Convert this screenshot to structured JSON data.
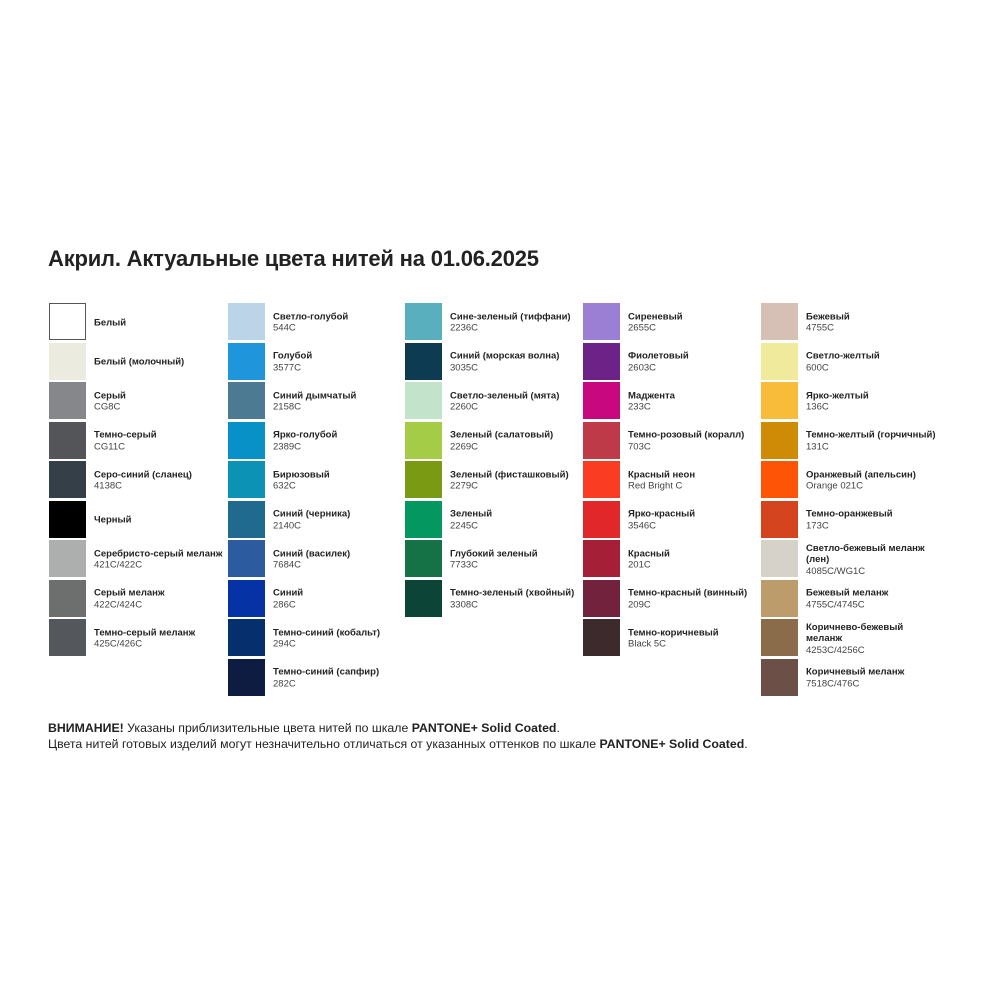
{
  "title": "Акрил. Актуальные цвета нитей на 01.06.2025",
  "columns": [
    [
      {
        "name": "Белый",
        "code": "",
        "color": "#ffffff",
        "border": true
      },
      {
        "name": "Белый (молочный)",
        "code": "",
        "color": "#ecebe0"
      },
      {
        "name": "Серый",
        "code": "CG8C",
        "color": "#85878b"
      },
      {
        "name": "Темно-серый",
        "code": "CG11C",
        "color": "#545559"
      },
      {
        "name": "Серо-синий (сланец)",
        "code": "4138C",
        "color": "#343f48"
      },
      {
        "name": "Черный",
        "code": "",
        "color": "#000000"
      },
      {
        "name": "Серебристо-серый меланж",
        "code": "421C/422C",
        "color": "#adaeae"
      },
      {
        "name": "Серый меланж",
        "code": "422C/424C",
        "color": "#6d6e6e"
      },
      {
        "name": "Темно-серый меланж",
        "code": "425C/426C",
        "color": "#54575b"
      }
    ],
    [
      {
        "name": "Светло-голубой",
        "code": "544C",
        "color": "#bcd4e8"
      },
      {
        "name": "Голубой",
        "code": "3577C",
        "color": "#1f95dc"
      },
      {
        "name": "Синий дымчатый",
        "code": "2158C",
        "color": "#4c7a92"
      },
      {
        "name": "Ярко-голубой",
        "code": "2389C",
        "color": "#0891c6"
      },
      {
        "name": "Бирюзовый",
        "code": "632C",
        "color": "#0b92b5"
      },
      {
        "name": "Синий (черника)",
        "code": "2140C",
        "color": "#216a8f"
      },
      {
        "name": "Синий (василек)",
        "code": "7684C",
        "color": "#2d5ba0"
      },
      {
        "name": "Синий",
        "code": "286C",
        "color": "#0533a6"
      },
      {
        "name": "Темно-синий (кобальт)",
        "code": "294C",
        "color": "#062f6e"
      },
      {
        "name": "Темно-синий (сапфир)",
        "code": "282C",
        "color": "#0e1c42"
      }
    ],
    [
      {
        "name": "Сине-зеленый (тиффани)",
        "code": "2236C",
        "color": "#5aafbe"
      },
      {
        "name": "Синий (морская волна)",
        "code": "3035C",
        "color": "#0d3c52"
      },
      {
        "name": "Светло-зеленый (мята)",
        "code": "2260C",
        "color": "#c3e4cb"
      },
      {
        "name": "Зеленый (салатовый)",
        "code": "2269C",
        "color": "#a4cc46"
      },
      {
        "name": "Зеленый (фисташковый)",
        "code": "2279C",
        "color": "#7a9a14"
      },
      {
        "name": "Зеленый",
        "code": "2245C",
        "color": "#04975f"
      },
      {
        "name": "Глубокий зеленый",
        "code": "7733C",
        "color": "#157246"
      },
      {
        "name": "Темно-зеленый (хвойный)",
        "code": "3308C",
        "color": "#0c4537"
      }
    ],
    [
      {
        "name": "Сиреневый",
        "code": "2655C",
        "color": "#9b7fd4"
      },
      {
        "name": "Фиолетовый",
        "code": "2603C",
        "color": "#6d2287"
      },
      {
        "name": "Маджента",
        "code": "233C",
        "color": "#c7087e"
      },
      {
        "name": "Темно-розовый (коралл)",
        "code": "703C",
        "color": "#be3a48"
      },
      {
        "name": "Красный неон",
        "code": "Red Bright C",
        "color": "#f93c22"
      },
      {
        "name": "Ярко-красный",
        "code": "3546C",
        "color": "#e2272a"
      },
      {
        "name": "Красный",
        "code": "201C",
        "color": "#a52036"
      },
      {
        "name": "Темно-красный (винный)",
        "code": "209C",
        "color": "#72223c"
      },
      {
        "name": "Темно-коричневый",
        "code": "Black 5C",
        "color": "#3d2a2d"
      }
    ],
    [
      {
        "name": "Бежевый",
        "code": "4755C",
        "color": "#d6c0b6"
      },
      {
        "name": "Светло-желтый",
        "code": "600C",
        "color": "#f0ea9c"
      },
      {
        "name": "Ярко-желтый",
        "code": "136C",
        "color": "#f9bb3a"
      },
      {
        "name": "Темно-желтый (горчичный)",
        "code": "131C",
        "color": "#cf8a06"
      },
      {
        "name": "Оранжевый (апельсин)",
        "code": "Orange 021C",
        "color": "#fe5405"
      },
      {
        "name": "Темно-оранжевый",
        "code": "173C",
        "color": "#d3441f"
      },
      {
        "name": "Светло-бежевый меланж (лен)",
        "code": "4085C/WG1C",
        "color": "#d6d2ca"
      },
      {
        "name": "Бежевый меланж",
        "code": "4755C/4745C",
        "color": "#bc9c6a"
      },
      {
        "name": "Коричнево-бежевый меланж",
        "code": "4253C/4256C",
        "color": "#8b6c4a"
      },
      {
        "name": "Коричневый меланж",
        "code": "7518C/476C",
        "color": "#6c4f47"
      }
    ]
  ],
  "notes": {
    "line1_bold": "ВНИМАНИЕ!",
    "line1_text": " Указаны приблизительные цвета нитей по шкале ",
    "line1_scale": "PANTONE+ Solid Coated",
    "line1_end": ".",
    "line2_text": "Цвета нитей готовых изделий могут незначительно отличаться от указанных оттенков по шкале ",
    "line2_scale": "PANTONE+ Solid Coated",
    "line2_end": "."
  }
}
